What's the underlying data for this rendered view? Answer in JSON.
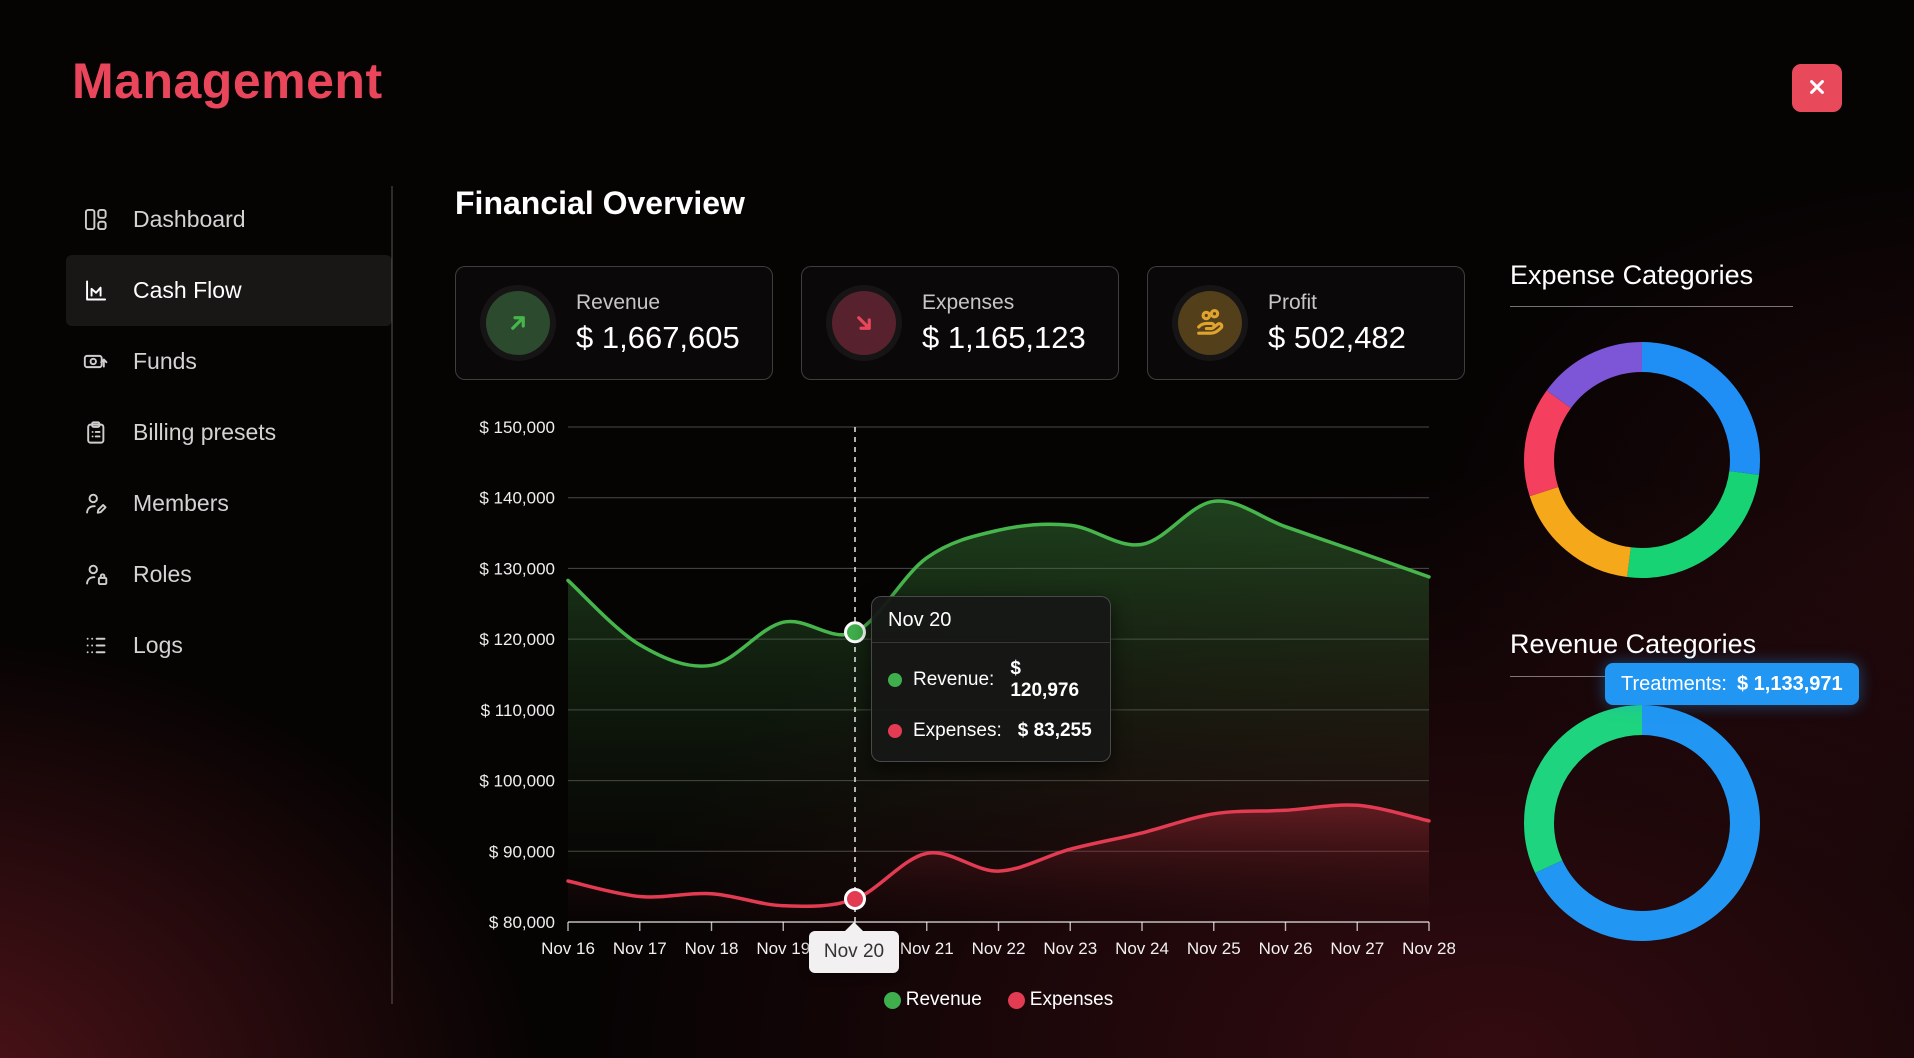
{
  "app": {
    "title": "Management",
    "brand_color": "#e9465c",
    "close_button_color": "#e84a5c"
  },
  "sidebar": {
    "items": [
      {
        "label": "Dashboard",
        "icon": "dashboard-icon",
        "active": false
      },
      {
        "label": "Cash Flow",
        "icon": "cash-flow-icon",
        "active": true
      },
      {
        "label": "Funds",
        "icon": "funds-icon",
        "active": false
      },
      {
        "label": "Billing presets",
        "icon": "billing-icon",
        "active": false
      },
      {
        "label": "Members",
        "icon": "members-icon",
        "active": false
      },
      {
        "label": "Roles",
        "icon": "roles-icon",
        "active": false
      },
      {
        "label": "Logs",
        "icon": "logs-icon",
        "active": false
      }
    ]
  },
  "main": {
    "title": "Financial Overview",
    "stats": [
      {
        "label": "Revenue",
        "value": "$ 1,667,605",
        "icon": "trend-up-icon",
        "accent": "#46b64c",
        "circle": "#2b4a2e"
      },
      {
        "label": "Expenses",
        "value": "$ 1,165,123",
        "icon": "trend-down-icon",
        "accent": "#e8465a",
        "circle": "#57222e"
      },
      {
        "label": "Profit",
        "value": "$ 502,482",
        "icon": "hand-coins-icon",
        "accent": "#dfa32e",
        "circle": "#53401a"
      }
    ]
  },
  "chart_data": [
    {
      "type": "area",
      "categories": [
        "Nov 16",
        "Nov 17",
        "Nov 18",
        "Nov 19",
        "Nov 20",
        "Nov 21",
        "Nov 22",
        "Nov 23",
        "Nov 24",
        "Nov 25",
        "Nov 26",
        "Nov 27",
        "Nov 28"
      ],
      "series": [
        {
          "name": "Revenue",
          "color": "#46b64c",
          "values": [
            128300,
            119200,
            116300,
            122400,
            120976,
            131500,
            135400,
            136100,
            133400,
            139500,
            135900,
            132400,
            128800
          ]
        },
        {
          "name": "Expenses",
          "color": "#e23b52",
          "values": [
            85800,
            83600,
            84000,
            82300,
            83255,
            89700,
            87200,
            90300,
            92600,
            95300,
            95800,
            96500,
            94300
          ]
        }
      ],
      "ylim": [
        80000,
        150000
      ],
      "ytick_step": 10000,
      "grid": true,
      "legend_position": "bottom",
      "hover": {
        "date": "Nov 20",
        "index": 4,
        "rows": [
          {
            "label": "Revenue:",
            "value": "$ 120,976",
            "color": "#3fae4c"
          },
          {
            "label": "Expenses:",
            "value": "$ 83,255",
            "color": "#e23b52"
          }
        ]
      }
    },
    {
      "type": "pie",
      "title": "Expense Categories",
      "donut": true,
      "segments": [
        {
          "name": "blue",
          "color": "#1f8ef5",
          "pct": 27
        },
        {
          "name": "green",
          "color": "#17d374",
          "pct": 25
        },
        {
          "name": "orange",
          "color": "#f6a81b",
          "pct": 18
        },
        {
          "name": "red",
          "color": "#f4405e",
          "pct": 15
        },
        {
          "name": "purple",
          "color": "#7d55d7",
          "pct": 15
        }
      ]
    },
    {
      "type": "pie",
      "title": "Revenue Categories",
      "donut": true,
      "segments": [
        {
          "name": "Treatments",
          "color": "#2196f3",
          "pct": 68,
          "value": "$ 1,133,971"
        },
        {
          "name": "other",
          "color": "#1ed47e",
          "pct": 32
        }
      ],
      "tooltip": {
        "label": "Treatments:",
        "value": "$ 1,133,971"
      }
    }
  ]
}
